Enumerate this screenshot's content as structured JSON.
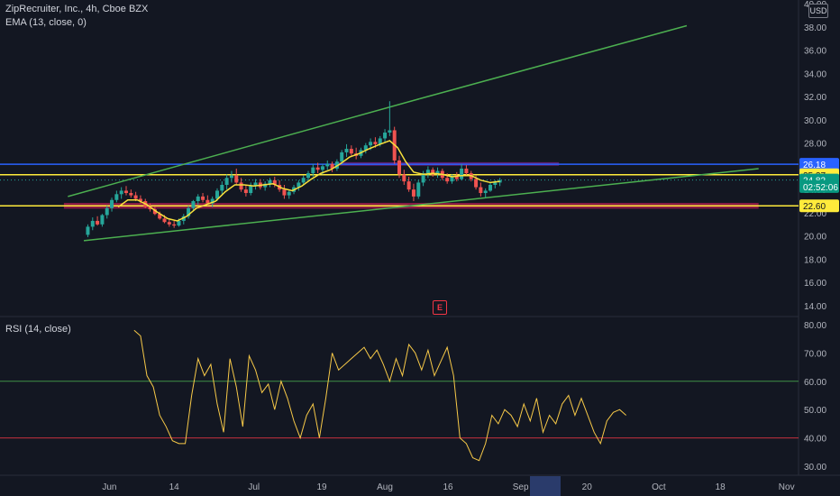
{
  "header": {
    "symbol_line": "ZipRecruiter, Inc., 4h, Cboe BZX",
    "ema_label": "EMA (13, close, 0)",
    "currency": "USD"
  },
  "rsi_panel": {
    "label": "RSI (14, close)"
  },
  "earnings_marker": "E",
  "colors": {
    "background": "#131722",
    "up": "#26a69a",
    "down": "#ef5350",
    "ema": "#f7e03c",
    "trend": "#4caf50",
    "blue_level": "#2962ff",
    "yellow_level": "#ffeb3b",
    "purple_zone": "#9c27b0",
    "pink_zone": "#e91e63",
    "rsi": "#f7c948"
  },
  "chart_data": [
    {
      "type": "candlestick",
      "ylim": [
        14,
        40
      ],
      "price_axis_ticks": [
        "40.00",
        "38.00",
        "36.00",
        "34.00",
        "32.00",
        "30.00",
        "28.00",
        "26.00",
        "24.00",
        "22.00",
        "20.00",
        "18.00",
        "16.00",
        "14.00"
      ],
      "x_ticks": [
        "Jun",
        "14",
        "Jul",
        "19",
        "Aug",
        "16",
        "Sep",
        "20",
        "Oct",
        "18",
        "Nov"
      ],
      "price_labels": [
        {
          "text": "26.18",
          "value": 26.18,
          "color": "#2962ff",
          "text_color": "#ffffff"
        },
        {
          "text": "25.27",
          "value": 25.27,
          "color": "#ffeb3b",
          "text_color": "#131722"
        },
        {
          "text": "24.82",
          "value": 24.82,
          "color": "#089981",
          "text_color": "#ffffff"
        },
        {
          "text": "02:52:06",
          "value": 24.25,
          "color": "#089981",
          "text_color": "#ffffff"
        },
        {
          "text": "22.60",
          "value": 22.6,
          "color": "#ffeb3b",
          "text_color": "#131722"
        }
      ],
      "horizontal_levels": [
        {
          "value": 26.18,
          "color": "#2962ff",
          "kind": "line"
        },
        {
          "value": 25.27,
          "color": "#ffeb3b",
          "kind": "line"
        },
        {
          "value": 22.6,
          "color": "#ffeb3b",
          "kind": "line"
        }
      ],
      "zones": [
        {
          "from": 26.05,
          "to": 26.35,
          "color": "#9c27b0",
          "x_from": 0.42,
          "x_to": 0.7
        },
        {
          "from": 22.35,
          "to": 22.85,
          "color": "#e91e63",
          "x_from": 0.08,
          "x_to": 0.95
        }
      ],
      "trendlines": [
        {
          "x0": 0.085,
          "y0": 23.4,
          "x1": 0.525,
          "y1": 31.8
        },
        {
          "x0": 0.525,
          "y0": 31.8,
          "x1": 0.86,
          "y1": 38.1
        },
        {
          "x0": 0.105,
          "y0": 19.6,
          "x1": 0.95,
          "y1": 25.8
        }
      ],
      "candles": [
        [
          0.11,
          20.1,
          21.0,
          19.9,
          20.8
        ],
        [
          0.116,
          20.8,
          21.6,
          20.5,
          21.3
        ],
        [
          0.122,
          21.3,
          21.7,
          20.9,
          21.0
        ],
        [
          0.128,
          21.0,
          21.9,
          20.8,
          21.8
        ],
        [
          0.134,
          21.8,
          22.6,
          21.5,
          22.4
        ],
        [
          0.14,
          22.4,
          23.3,
          22.1,
          23.1
        ],
        [
          0.146,
          23.1,
          23.9,
          22.9,
          23.6
        ],
        [
          0.152,
          23.6,
          24.2,
          23.2,
          23.9
        ],
        [
          0.158,
          23.9,
          24.3,
          23.5,
          23.7
        ],
        [
          0.164,
          23.7,
          24.0,
          23.3,
          23.5
        ],
        [
          0.17,
          23.5,
          23.8,
          23.0,
          23.2
        ],
        [
          0.176,
          23.2,
          23.5,
          22.8,
          23.0
        ],
        [
          0.182,
          23.0,
          23.2,
          22.4,
          22.5
        ],
        [
          0.188,
          22.5,
          22.8,
          22.1,
          22.3
        ],
        [
          0.194,
          22.3,
          22.5,
          21.8,
          21.9
        ],
        [
          0.2,
          21.9,
          22.1,
          21.4,
          21.5
        ],
        [
          0.206,
          21.5,
          21.8,
          21.1,
          21.2
        ],
        [
          0.212,
          21.2,
          21.4,
          20.8,
          21.0
        ],
        [
          0.218,
          21.0,
          21.3,
          20.7,
          20.9
        ],
        [
          0.224,
          20.9,
          21.5,
          20.8,
          21.3
        ],
        [
          0.23,
          21.3,
          21.9,
          21.0,
          21.7
        ],
        [
          0.236,
          21.7,
          22.6,
          21.5,
          22.4
        ],
        [
          0.242,
          22.4,
          23.1,
          22.2,
          23.0
        ],
        [
          0.248,
          23.0,
          23.6,
          22.7,
          23.4
        ],
        [
          0.254,
          23.4,
          23.7,
          22.9,
          23.1
        ],
        [
          0.26,
          23.1,
          23.5,
          22.6,
          22.8
        ],
        [
          0.266,
          22.8,
          23.4,
          22.5,
          23.2
        ],
        [
          0.272,
          23.2,
          24.1,
          23.0,
          23.9
        ],
        [
          0.278,
          23.9,
          24.7,
          23.6,
          24.4
        ],
        [
          0.284,
          24.4,
          25.3,
          24.0,
          25.0
        ],
        [
          0.29,
          25.0,
          25.6,
          24.6,
          25.2
        ],
        [
          0.296,
          25.2,
          25.8,
          24.4,
          24.6
        ],
        [
          0.302,
          24.6,
          25.0,
          23.8,
          24.0
        ],
        [
          0.308,
          24.0,
          24.4,
          23.4,
          23.7
        ],
        [
          0.314,
          23.7,
          24.6,
          23.5,
          24.3
        ],
        [
          0.32,
          24.3,
          24.9,
          24.0,
          24.6
        ],
        [
          0.326,
          24.6,
          24.9,
          24.0,
          24.2
        ],
        [
          0.332,
          24.2,
          24.7,
          23.9,
          24.5
        ],
        [
          0.338,
          24.5,
          25.0,
          24.2,
          24.8
        ],
        [
          0.344,
          24.8,
          25.1,
          24.2,
          24.4
        ],
        [
          0.35,
          24.4,
          24.8,
          23.8,
          24.0
        ],
        [
          0.356,
          24.0,
          24.4,
          23.2,
          23.5
        ],
        [
          0.362,
          23.5,
          24.0,
          23.2,
          23.8
        ],
        [
          0.368,
          23.8,
          24.4,
          23.6,
          24.2
        ],
        [
          0.374,
          24.2,
          24.8,
          23.9,
          24.6
        ],
        [
          0.38,
          24.6,
          25.2,
          24.4,
          25.0
        ],
        [
          0.386,
          25.0,
          25.6,
          24.7,
          25.4
        ],
        [
          0.392,
          25.4,
          26.2,
          25.1,
          25.9
        ],
        [
          0.398,
          25.9,
          26.3,
          25.4,
          25.7
        ],
        [
          0.404,
          25.7,
          26.2,
          25.3,
          26.0
        ],
        [
          0.41,
          26.0,
          26.5,
          25.7,
          26.2
        ],
        [
          0.416,
          26.2,
          26.4,
          25.5,
          25.8
        ],
        [
          0.422,
          25.8,
          26.6,
          25.6,
          26.4
        ],
        [
          0.428,
          26.4,
          27.4,
          26.2,
          27.2
        ],
        [
          0.434,
          27.2,
          27.9,
          26.8,
          27.5
        ],
        [
          0.44,
          27.5,
          27.8,
          26.9,
          27.1
        ],
        [
          0.446,
          27.1,
          27.6,
          26.6,
          26.9
        ],
        [
          0.452,
          26.9,
          27.6,
          26.7,
          27.4
        ],
        [
          0.458,
          27.4,
          28.0,
          27.1,
          27.8
        ],
        [
          0.464,
          27.8,
          28.4,
          27.4,
          28.1
        ],
        [
          0.47,
          28.1,
          28.5,
          27.6,
          27.9
        ],
        [
          0.476,
          27.9,
          28.6,
          27.7,
          28.4
        ],
        [
          0.482,
          28.4,
          29.2,
          28.1,
          28.9
        ],
        [
          0.488,
          28.9,
          31.6,
          28.6,
          29.1
        ],
        [
          0.494,
          29.1,
          29.4,
          26.2,
          26.5
        ],
        [
          0.5,
          26.5,
          26.9,
          25.0,
          25.3
        ],
        [
          0.506,
          25.3,
          25.7,
          24.4,
          24.7
        ],
        [
          0.512,
          24.7,
          25.1,
          23.8,
          24.0
        ],
        [
          0.518,
          24.0,
          24.5,
          23.0,
          23.4
        ],
        [
          0.524,
          23.4,
          24.8,
          23.2,
          24.6
        ],
        [
          0.53,
          24.6,
          25.6,
          24.3,
          25.4
        ],
        [
          0.536,
          25.4,
          26.0,
          25.0,
          25.7
        ],
        [
          0.542,
          25.7,
          25.9,
          25.1,
          25.3
        ],
        [
          0.548,
          25.3,
          25.9,
          25.0,
          25.6
        ],
        [
          0.554,
          25.6,
          25.8,
          24.8,
          25.0
        ],
        [
          0.56,
          25.0,
          25.4,
          24.5,
          24.7
        ],
        [
          0.566,
          24.7,
          25.3,
          24.5,
          25.1
        ],
        [
          0.572,
          25.1,
          25.5,
          24.7,
          24.9
        ],
        [
          0.578,
          24.9,
          26.2,
          24.8,
          25.8
        ],
        [
          0.584,
          25.8,
          26.1,
          25.2,
          25.4
        ],
        [
          0.59,
          25.4,
          25.6,
          24.7,
          24.9
        ],
        [
          0.596,
          24.9,
          25.2,
          24.0,
          24.2
        ],
        [
          0.602,
          24.2,
          24.6,
          23.4,
          23.7
        ],
        [
          0.608,
          23.7,
          24.1,
          23.3,
          23.9
        ],
        [
          0.614,
          23.9,
          24.6,
          23.8,
          24.4
        ],
        [
          0.62,
          24.4,
          24.8,
          24.1,
          24.6
        ],
        [
          0.626,
          24.6,
          25.0,
          24.3,
          24.8
        ]
      ],
      "ema": [
        [
          0.148,
          22.5
        ],
        [
          0.16,
          23.1
        ],
        [
          0.172,
          23.1
        ],
        [
          0.184,
          22.7
        ],
        [
          0.196,
          22.1
        ],
        [
          0.21,
          21.5
        ],
        [
          0.222,
          21.3
        ],
        [
          0.234,
          21.7
        ],
        [
          0.246,
          22.4
        ],
        [
          0.258,
          22.7
        ],
        [
          0.27,
          23.0
        ],
        [
          0.282,
          23.8
        ],
        [
          0.294,
          24.4
        ],
        [
          0.306,
          24.4
        ],
        [
          0.318,
          24.3
        ],
        [
          0.33,
          24.4
        ],
        [
          0.342,
          24.5
        ],
        [
          0.354,
          24.1
        ],
        [
          0.366,
          23.9
        ],
        [
          0.378,
          24.3
        ],
        [
          0.39,
          24.9
        ],
        [
          0.402,
          25.4
        ],
        [
          0.414,
          25.7
        ],
        [
          0.426,
          26.2
        ],
        [
          0.438,
          26.8
        ],
        [
          0.45,
          27.1
        ],
        [
          0.462,
          27.5
        ],
        [
          0.476,
          27.9
        ],
        [
          0.488,
          28.2
        ],
        [
          0.498,
          27.6
        ],
        [
          0.508,
          26.4
        ],
        [
          0.518,
          25.5
        ],
        [
          0.53,
          25.3
        ],
        [
          0.542,
          25.4
        ],
        [
          0.554,
          25.3
        ],
        [
          0.566,
          25.1
        ],
        [
          0.578,
          25.2
        ],
        [
          0.59,
          25.2
        ],
        [
          0.602,
          24.8
        ],
        [
          0.614,
          24.6
        ],
        [
          0.626,
          24.7
        ]
      ]
    },
    {
      "type": "line",
      "title": "RSI (14, close)",
      "ylim": [
        30,
        80
      ],
      "y_ticks": [
        "80.00",
        "70.00",
        "60.00",
        "50.00",
        "40.00",
        "30.00"
      ],
      "bands": [
        {
          "value": 60,
          "color": "#4caf50"
        },
        {
          "value": 40,
          "color": "#f23645"
        }
      ],
      "series": [
        {
          "values": [
            [
              0.168,
              78
            ],
            [
              0.176,
              76
            ],
            [
              0.184,
              62
            ],
            [
              0.192,
              58
            ],
            [
              0.2,
              48
            ],
            [
              0.208,
              44
            ],
            [
              0.216,
              39
            ],
            [
              0.224,
              38
            ],
            [
              0.232,
              38
            ],
            [
              0.24,
              55
            ],
            [
              0.248,
              68
            ],
            [
              0.256,
              62
            ],
            [
              0.264,
              66
            ],
            [
              0.272,
              52
            ],
            [
              0.28,
              42
            ],
            [
              0.288,
              68
            ],
            [
              0.296,
              58
            ],
            [
              0.304,
              44
            ],
            [
              0.312,
              69
            ],
            [
              0.32,
              64
            ],
            [
              0.328,
              56
            ],
            [
              0.336,
              59
            ],
            [
              0.344,
              50
            ],
            [
              0.352,
              60
            ],
            [
              0.36,
              54
            ],
            [
              0.368,
              46
            ],
            [
              0.376,
              40
            ],
            [
              0.384,
              48
            ],
            [
              0.392,
              52
            ],
            [
              0.4,
              40
            ],
            [
              0.408,
              54
            ],
            [
              0.416,
              70
            ],
            [
              0.424,
              64
            ],
            [
              0.432,
              66
            ],
            [
              0.44,
              68
            ],
            [
              0.448,
              70
            ],
            [
              0.456,
              72
            ],
            [
              0.464,
              68
            ],
            [
              0.472,
              71
            ],
            [
              0.48,
              66
            ],
            [
              0.488,
              60
            ],
            [
              0.496,
              68
            ],
            [
              0.504,
              62
            ],
            [
              0.512,
              73
            ],
            [
              0.52,
              70
            ],
            [
              0.528,
              64
            ],
            [
              0.536,
              71
            ],
            [
              0.544,
              62
            ],
            [
              0.552,
              67
            ],
            [
              0.56,
              72
            ],
            [
              0.568,
              62
            ],
            [
              0.576,
              40
            ],
            [
              0.584,
              38
            ],
            [
              0.592,
              33
            ],
            [
              0.6,
              32
            ],
            [
              0.608,
              38
            ],
            [
              0.616,
              48
            ],
            [
              0.624,
              45
            ],
            [
              0.632,
              50
            ],
            [
              0.64,
              48
            ],
            [
              0.648,
              44
            ],
            [
              0.656,
              52
            ],
            [
              0.664,
              46
            ],
            [
              0.672,
              54
            ],
            [
              0.68,
              42
            ],
            [
              0.688,
              48
            ],
            [
              0.696,
              45
            ],
            [
              0.704,
              52
            ],
            [
              0.712,
              55
            ],
            [
              0.72,
              48
            ],
            [
              0.728,
              54
            ],
            [
              0.736,
              48
            ],
            [
              0.744,
              42
            ],
            [
              0.752,
              38
            ],
            [
              0.76,
              46
            ],
            [
              0.768,
              49
            ],
            [
              0.776,
              50
            ],
            [
              0.784,
              48
            ]
          ]
        }
      ]
    }
  ]
}
